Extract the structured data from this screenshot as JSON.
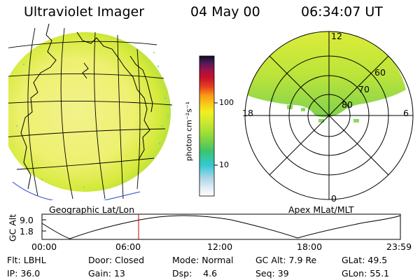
{
  "header": {
    "instrument": "Ultraviolet Imager",
    "date": "04 May 00",
    "time": "06:34:07 UT"
  },
  "left_panel": {
    "caption": "Geographic Lat/Lon"
  },
  "right_panel": {
    "caption": "Apex MLat/MLT",
    "mlt_labels": {
      "top": "12",
      "right": "6",
      "bottom": "0",
      "left": "18"
    },
    "lat_labels": [
      "60",
      "70",
      "80"
    ]
  },
  "colorbar": {
    "unit_label": "photon cm⁻²s⁻¹",
    "tick_labels": [
      "100",
      "10"
    ],
    "scale": "log"
  },
  "altitude_plot": {
    "ylabel": "GC Alt",
    "y_ticks": [
      "9.0",
      "1.8"
    ],
    "x_ticks": [
      "00:00",
      "06:00",
      "12:00",
      "18:00",
      "23:59"
    ],
    "marker_time": "06:34",
    "marker_color": "#cc0000"
  },
  "status": {
    "row1": [
      {
        "label": "Flt:",
        "value": "LBHL"
      },
      {
        "label": "Door:",
        "value": "Closed"
      },
      {
        "label": "Mode:",
        "value": "Normal"
      },
      {
        "label": "GC Alt:",
        "value": "7.9 Re"
      },
      {
        "label": "GLat:",
        "value": "49.5"
      }
    ],
    "row2": [
      {
        "label": "IP:",
        "value": "36.0"
      },
      {
        "label": "Gain:",
        "value": "13"
      },
      {
        "label": "Dsp:",
        "value": "4.6"
      },
      {
        "label": "Seq:",
        "value": "39"
      },
      {
        "label": "GLon:",
        "value": "55.1"
      }
    ]
  }
}
